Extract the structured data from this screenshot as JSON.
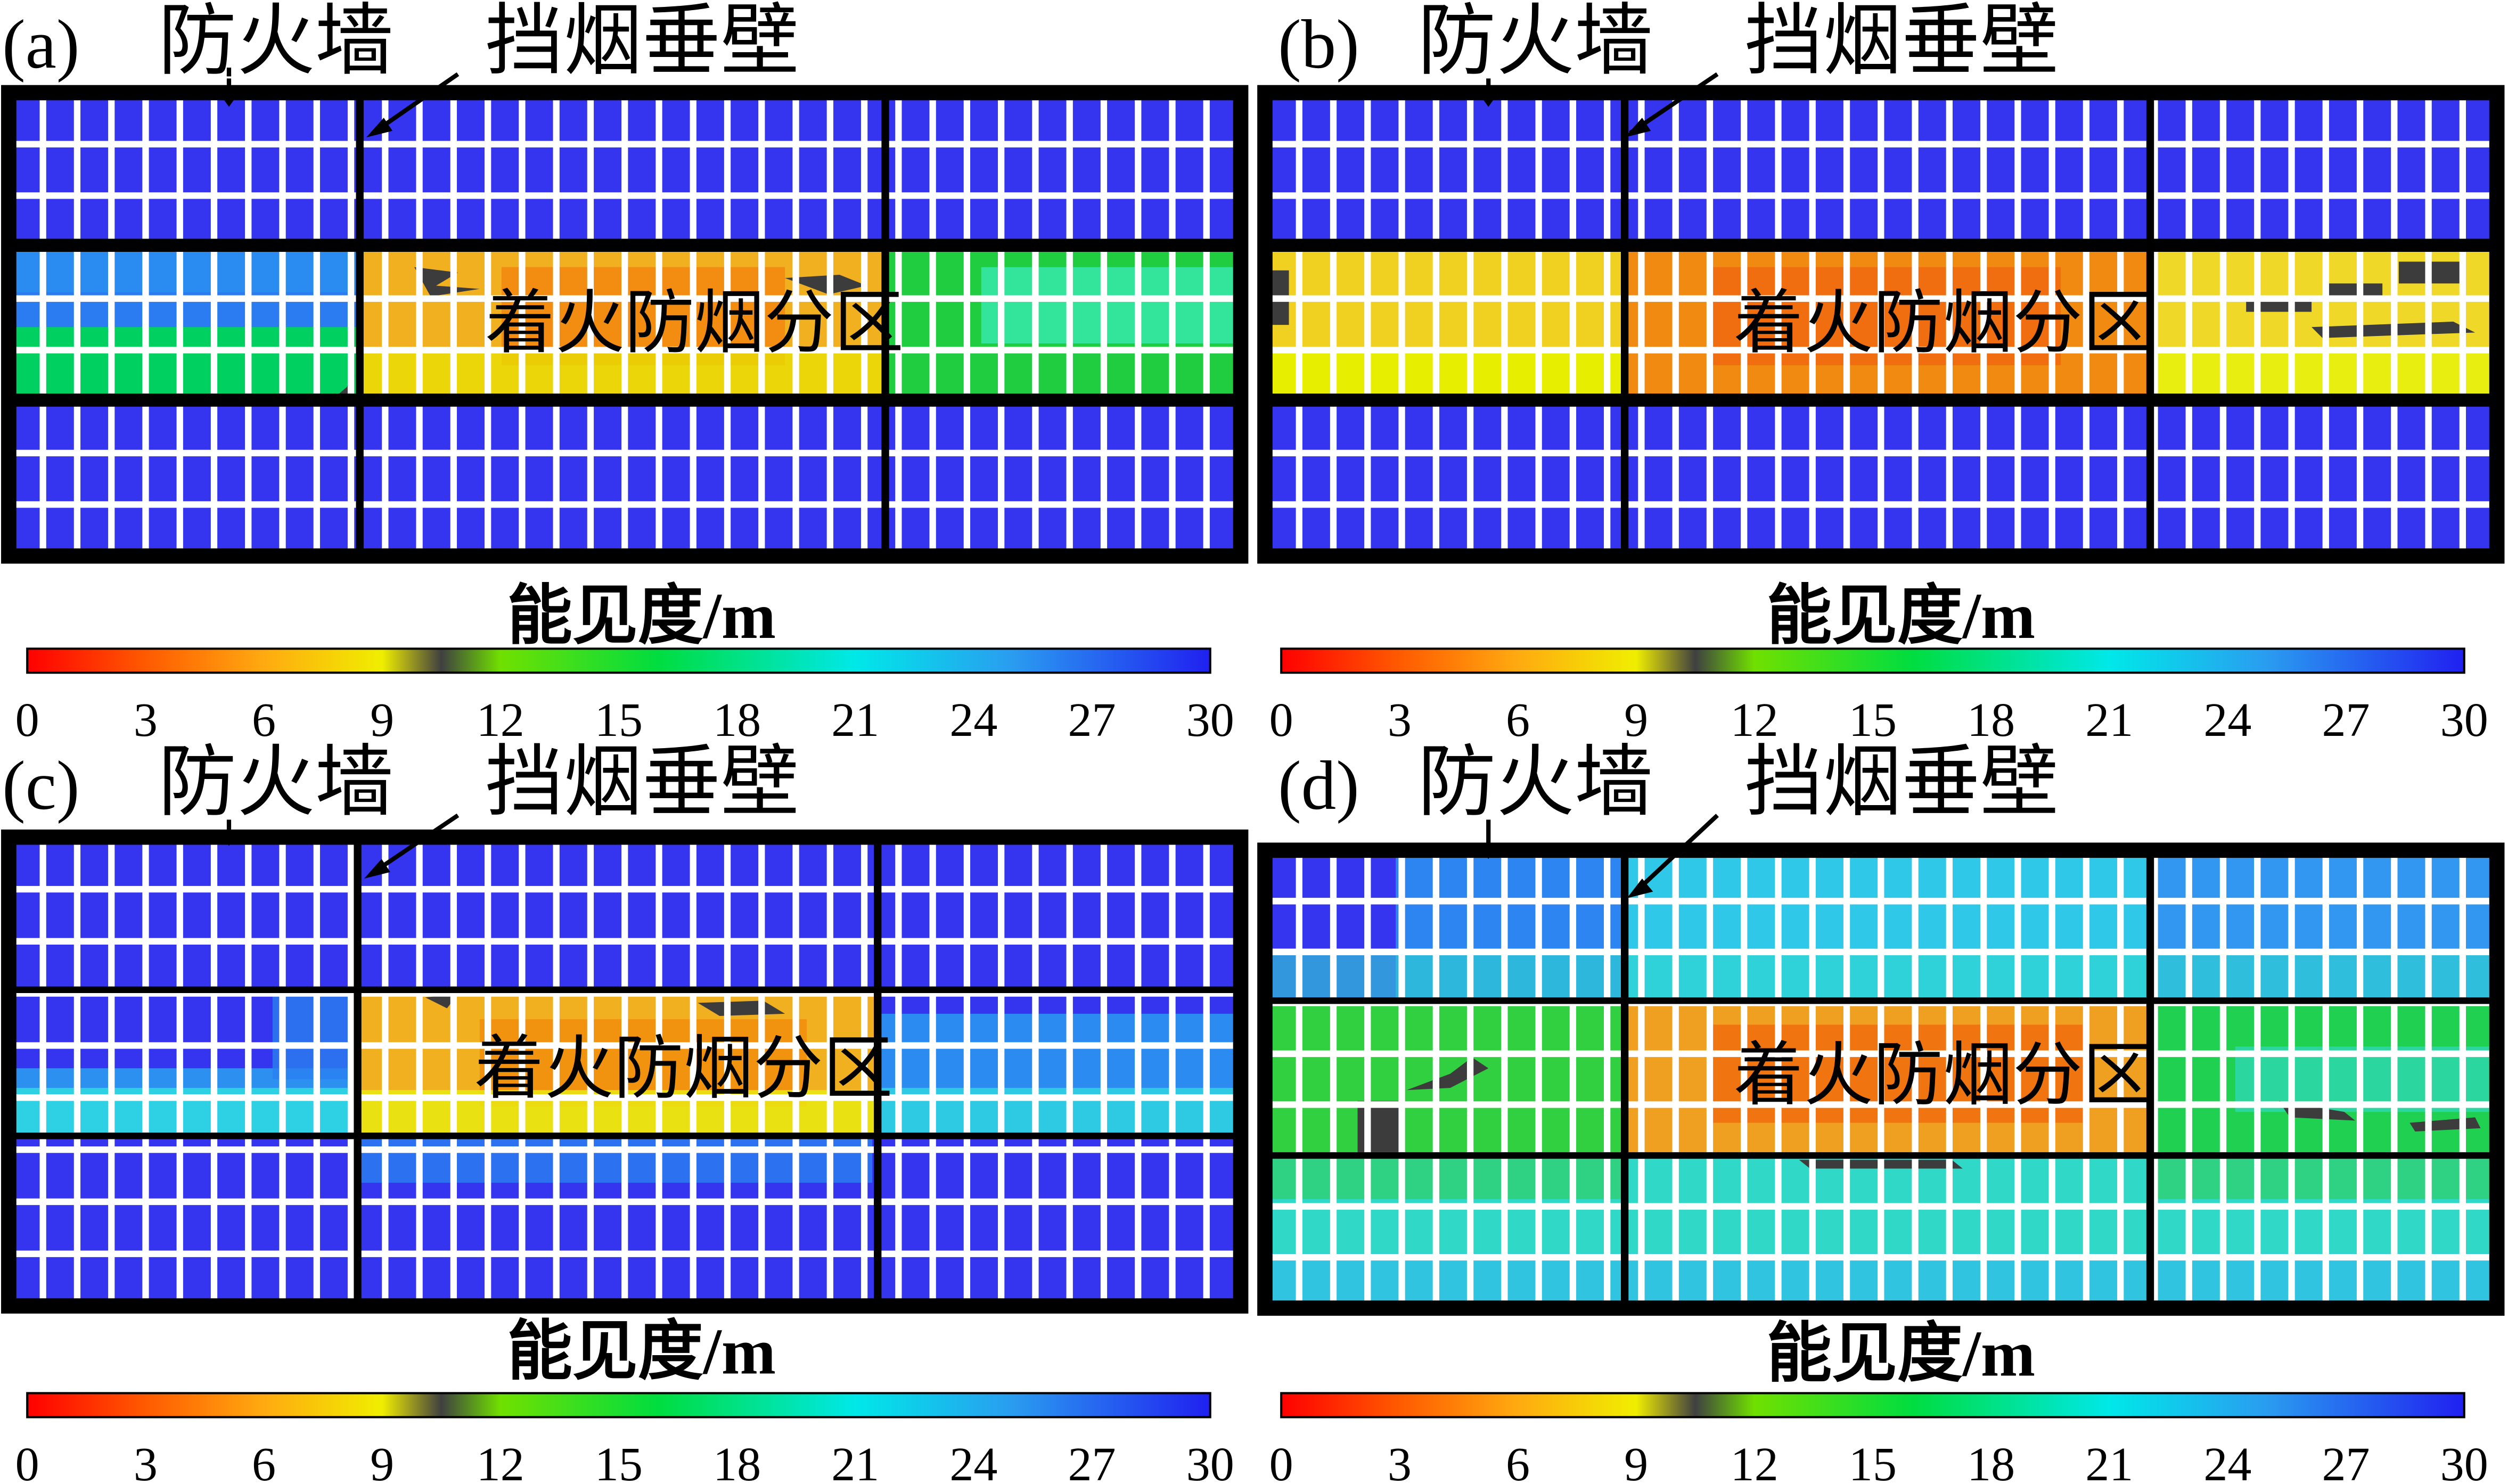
{
  "labels": {
    "firewall": "防火墙",
    "curtain": "挡烟垂壁",
    "fire_zone": "着火防烟分区",
    "colorbar_title": "能见度/m"
  },
  "colorbar": {
    "ticks": [
      "0",
      "3",
      "6",
      "9",
      "12",
      "15",
      "18",
      "21",
      "24",
      "27",
      "30"
    ],
    "min": 0,
    "max": 30,
    "stops": [
      {
        "value": 0,
        "color": "#ff0000"
      },
      {
        "value": 3,
        "color": "#ff5a00"
      },
      {
        "value": 6,
        "color": "#ffaa10"
      },
      {
        "value": 9,
        "color": "#f0ee00"
      },
      {
        "value": 10.5,
        "color": "#404040"
      },
      {
        "value": 12,
        "color": "#70e000"
      },
      {
        "value": 16,
        "color": "#00dd40"
      },
      {
        "value": 21,
        "color": "#00e8e8"
      },
      {
        "value": 25,
        "color": "#2a9cf0"
      },
      {
        "value": 30,
        "color": "#2020f0"
      }
    ]
  },
  "colors": {
    "clear_blue": "#3535ef",
    "grid_line": "#ffffff",
    "frame": "#000000",
    "low_visibility": "#3c3c3c"
  },
  "panels": [
    {
      "id": "a",
      "label": "(a)"
    },
    {
      "id": "b",
      "label": "(b)"
    },
    {
      "id": "c",
      "label": "(c)"
    },
    {
      "id": "d",
      "label": "(d)"
    }
  ]
}
